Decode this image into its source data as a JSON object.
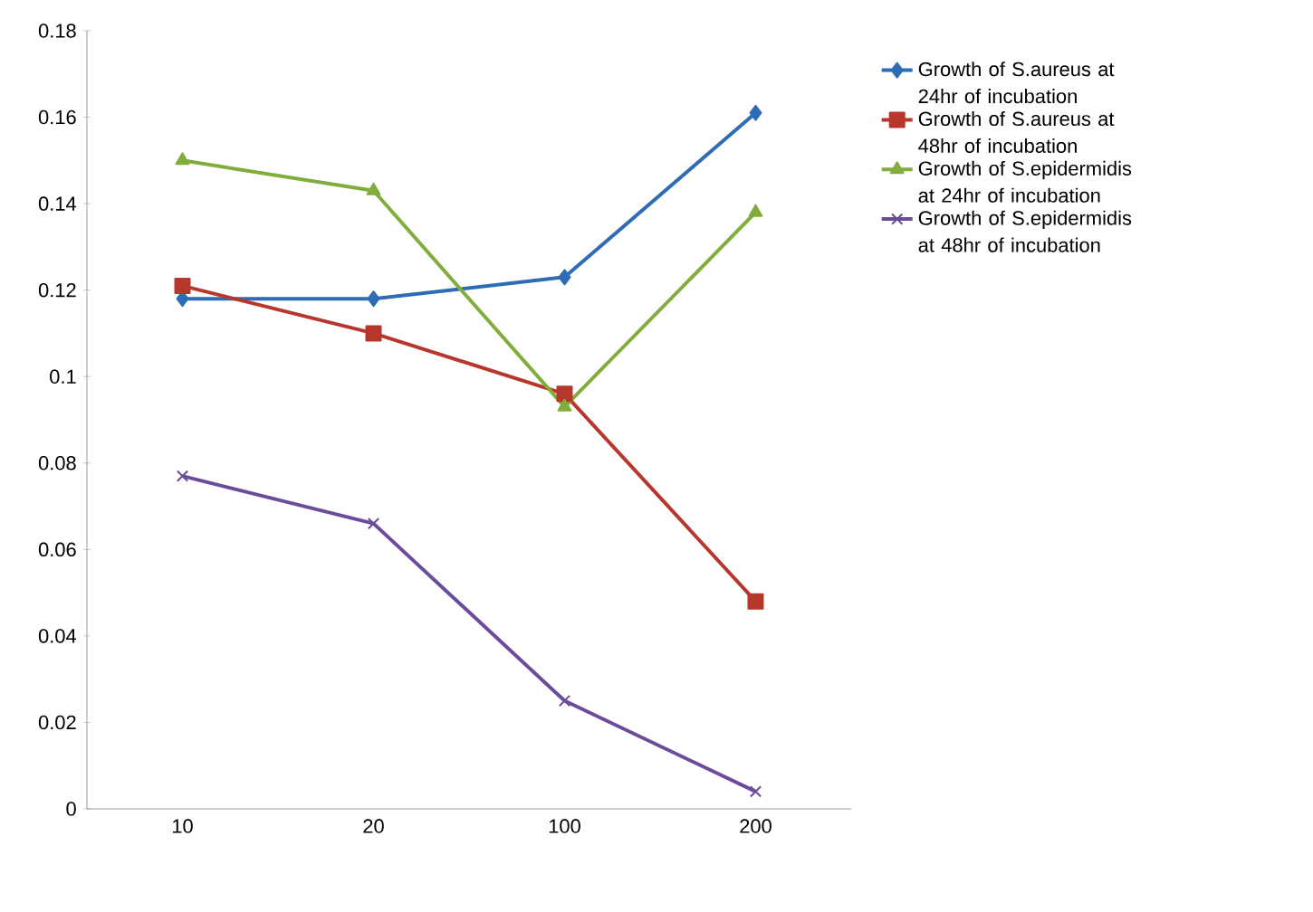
{
  "chart_data": {
    "type": "line",
    "categories": [
      "10",
      "20",
      "100",
      "200"
    ],
    "series": [
      {
        "name": "Growth of S.aureus at 24hr of incubation",
        "color": "#2e6db5",
        "marker": "diamond",
        "values": [
          0.118,
          0.118,
          0.123,
          0.161
        ]
      },
      {
        "name": "Growth of S.aureus at 48hr of incubation",
        "color": "#b7372d",
        "marker": "square",
        "values": [
          0.121,
          0.11,
          0.096,
          0.048
        ]
      },
      {
        "name": "Growth of S.epidermidis at 24hr of incubation",
        "color": "#80ad3b",
        "marker": "triangle",
        "values": [
          0.15,
          0.143,
          0.093,
          0.138
        ]
      },
      {
        "name": "Growth of S.epidermidis at 48hr of incubation",
        "color": "#6b4c9b",
        "marker": "cross",
        "values": [
          0.077,
          0.066,
          0.025,
          0.004
        ]
      }
    ],
    "ylim": [
      0,
      0.18
    ],
    "yticks": [
      0,
      0.02,
      0.04,
      0.06,
      0.08,
      0.1,
      0.12,
      0.14,
      0.16,
      0.18
    ],
    "grid": false,
    "legend": "right",
    "line_style": "solid"
  }
}
